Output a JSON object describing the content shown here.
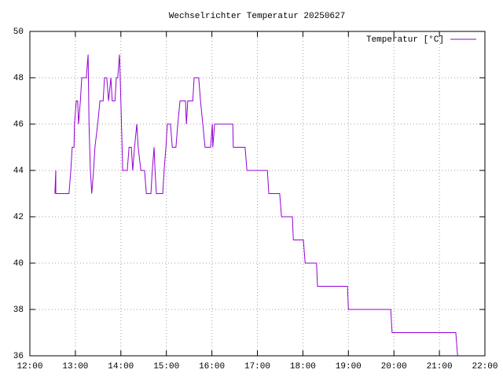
{
  "chart_data": {
    "type": "line",
    "title": "Wechselrichter Temperatur 20250627",
    "x": [
      12.55,
      12.57,
      12.57,
      12.86,
      12.9,
      12.93,
      12.97,
      12.98,
      13.02,
      13.05,
      13.07,
      13.11,
      13.14,
      13.24,
      13.28,
      13.3,
      13.33,
      13.36,
      13.4,
      13.43,
      13.49,
      13.54,
      13.61,
      13.64,
      13.69,
      13.73,
      13.78,
      13.81,
      13.87,
      13.9,
      13.93,
      13.97,
      14.0,
      14.04,
      14.14,
      14.18,
      14.23,
      14.26,
      14.3,
      14.35,
      14.38,
      14.44,
      14.52,
      14.56,
      14.66,
      14.69,
      14.73,
      14.75,
      14.78,
      14.92,
      14.95,
      14.99,
      15.02,
      15.09,
      15.13,
      15.21,
      15.25,
      15.3,
      15.42,
      15.44,
      15.47,
      15.58,
      15.61,
      15.71,
      15.75,
      15.8,
      15.85,
      15.97,
      16.01,
      16.02,
      16.06,
      16.46,
      16.47,
      16.73,
      16.77,
      17.22,
      17.25,
      17.49,
      17.53,
      17.77,
      17.79,
      18.01,
      18.05,
      18.3,
      18.32,
      18.98,
      19.0,
      19.93,
      19.96,
      21.36,
      21.4
    ],
    "series": [
      {
        "name": "Temperatur [°C]",
        "color": "#9400d3",
        "values": [
          43,
          44,
          43,
          43,
          44,
          45,
          45,
          46,
          47,
          47,
          46,
          47,
          48,
          48,
          49,
          46,
          44,
          43,
          44,
          45,
          46,
          47,
          47,
          48,
          48,
          47,
          48,
          47,
          47,
          48,
          48,
          49,
          47,
          44,
          44,
          45,
          45,
          44,
          45,
          46,
          45,
          44,
          44,
          43,
          43,
          44,
          45,
          44,
          43,
          43,
          44,
          45,
          46,
          46,
          45,
          45,
          46,
          47,
          47,
          46,
          47,
          47,
          48,
          48,
          47,
          46,
          45,
          45,
          46,
          45,
          46,
          46,
          45,
          45,
          44,
          44,
          43,
          43,
          42,
          42,
          41,
          41,
          40,
          40,
          39,
          39,
          38,
          38,
          37,
          37,
          36
        ]
      }
    ],
    "xlim": [
      12,
      22
    ],
    "xticks": [
      {
        "value": 12,
        "label": "12:00"
      },
      {
        "value": 13,
        "label": "13:00"
      },
      {
        "value": 14,
        "label": "14:00"
      },
      {
        "value": 15,
        "label": "15:00"
      },
      {
        "value": 16,
        "label": "16:00"
      },
      {
        "value": 17,
        "label": "17:00"
      },
      {
        "value": 18,
        "label": "18:00"
      },
      {
        "value": 19,
        "label": "19:00"
      },
      {
        "value": 20,
        "label": "20:00"
      },
      {
        "value": 21,
        "label": "21:00"
      },
      {
        "value": 22,
        "label": "22:00"
      }
    ],
    "ylim": [
      36,
      50
    ],
    "yticks": [
      36,
      38,
      40,
      42,
      44,
      46,
      48,
      50
    ],
    "grid": true,
    "legend": "top-right"
  }
}
